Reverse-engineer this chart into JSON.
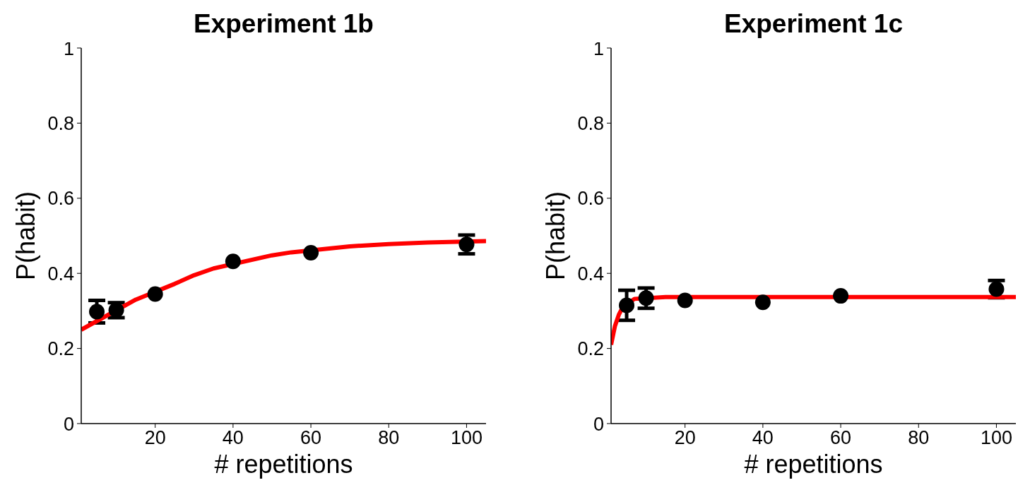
{
  "chart_data": [
    {
      "type": "scatter",
      "title": "Experiment 1b",
      "xlabel": "# repetitions",
      "ylabel": "P(habit)",
      "xlim": [
        1,
        105
      ],
      "xticks": [
        20,
        40,
        60,
        80,
        100
      ],
      "ylim": [
        0,
        1
      ],
      "yticks": [
        0,
        0.2,
        0.4,
        0.6,
        0.8,
        1
      ],
      "grid": false,
      "series": [
        {
          "color": "#000000",
          "marker": "circle",
          "x": [
            5,
            10,
            20,
            40,
            60,
            100
          ],
          "values": [
            0.298,
            0.302,
            0.345,
            0.432,
            0.455,
            0.477
          ],
          "errors": [
            0.03,
            0.02,
            null,
            null,
            null,
            0.025
          ]
        },
        {
          "type": "line",
          "marker": "none",
          "color": "#ff0000",
          "x": [
            1,
            15,
            25,
            30,
            35,
            50,
            55,
            70,
            80,
            90,
            105
          ],
          "values": [
            0.25,
            0.33,
            0.372,
            0.395,
            0.413,
            0.448,
            0.456,
            0.472,
            0.478,
            0.482,
            0.486
          ]
        }
      ]
    },
    {
      "type": "scatter",
      "title": "Experiment 1c",
      "xlabel": "# repetitions",
      "ylabel": "P(habit)",
      "xlim": [
        1,
        105
      ],
      "xticks": [
        20,
        40,
        60,
        80,
        100
      ],
      "ylim": [
        0,
        1
      ],
      "yticks": [
        0,
        0.2,
        0.4,
        0.6,
        0.8,
        1
      ],
      "grid": false,
      "series": [
        {
          "color": "#000000",
          "marker": "circle",
          "x": [
            5,
            10,
            20,
            40,
            60,
            100
          ],
          "values": [
            0.315,
            0.334,
            0.328,
            0.323,
            0.34,
            0.358
          ],
          "errors": [
            0.04,
            0.027,
            null,
            null,
            null,
            0.023
          ]
        },
        {
          "type": "line",
          "marker": "none",
          "color": "#ff0000",
          "x": [
            1,
            2,
            3,
            4,
            7,
            15,
            30,
            105
          ],
          "values": [
            0.21,
            0.26,
            0.29,
            0.31,
            0.332,
            0.337,
            0.337,
            0.337
          ]
        }
      ]
    }
  ]
}
